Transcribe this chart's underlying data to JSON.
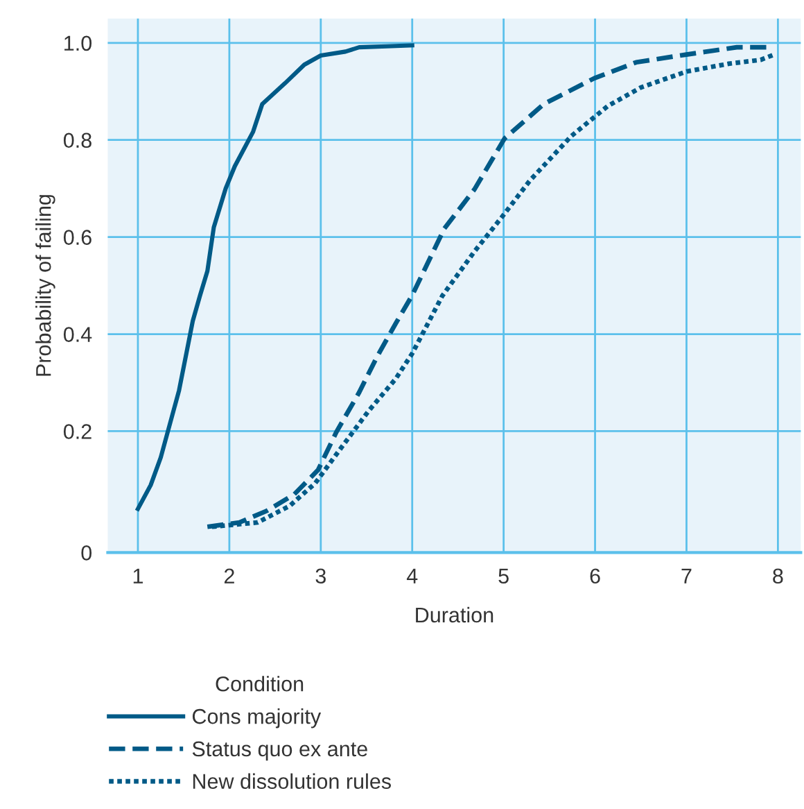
{
  "chart_data": {
    "type": "line",
    "xlabel": "Duration",
    "ylabel": "Probability of failing",
    "legend_title": "Condition",
    "xlim": [
      0.67,
      8.25
    ],
    "ylim": [
      -0.05,
      1.05
    ],
    "xticks": [
      1,
      2,
      3,
      4,
      5,
      6,
      7,
      8
    ],
    "yticks": [
      {
        "value": -0.05,
        "label": "0"
      },
      {
        "value": 0.2,
        "label": "0.2"
      },
      {
        "value": 0.4,
        "label": "0.4"
      },
      {
        "value": 0.6,
        "label": "0.6"
      },
      {
        "value": 0.8,
        "label": "0.8"
      },
      {
        "value": 1,
        "label": "1.0"
      }
    ],
    "grid": true,
    "legend": "bottom",
    "marker": "none",
    "series": [
      {
        "name": "Cons majority",
        "color": "#005a87",
        "line_style": "solid",
        "x": [
          1.0,
          1.14,
          1.25,
          1.45,
          1.6,
          1.68,
          1.76,
          1.83,
          1.96,
          2.06,
          2.26,
          2.36,
          2.61,
          2.82,
          3.0,
          3.27,
          3.42,
          3.72,
          4.0
        ],
        "values": [
          0.04,
          0.089,
          0.146,
          0.284,
          0.427,
          0.48,
          0.53,
          0.62,
          0.7,
          0.746,
          0.817,
          0.874,
          0.917,
          0.955,
          0.974,
          0.982,
          0.991,
          0.993,
          0.995
        ]
      },
      {
        "name": "Status quo ex ante",
        "color": "#005a87",
        "line_style": "dashed",
        "x": [
          1.76,
          2.11,
          2.41,
          2.71,
          2.97,
          3.17,
          3.42,
          3.62,
          3.82,
          4.0,
          4.35,
          4.68,
          5.01,
          5.44,
          5.99,
          6.45,
          7.0,
          7.55,
          7.88
        ],
        "values": [
          0.003,
          0.012,
          0.036,
          0.07,
          0.12,
          0.198,
          0.28,
          0.355,
          0.422,
          0.48,
          0.617,
          0.698,
          0.803,
          0.874,
          0.927,
          0.96,
          0.976,
          0.991,
          0.991
        ]
      },
      {
        "name": "New dissolution rules",
        "color": "#005a87",
        "line_style": "dotted",
        "x": [
          1.81,
          2.31,
          2.66,
          2.94,
          3.22,
          3.52,
          3.82,
          4.0,
          4.33,
          4.68,
          4.98,
          5.29,
          5.74,
          6.14,
          6.5,
          7.0,
          7.46,
          7.81,
          7.96
        ],
        "values": [
          0.003,
          0.012,
          0.046,
          0.093,
          0.165,
          0.241,
          0.308,
          0.36,
          0.479,
          0.57,
          0.641,
          0.717,
          0.808,
          0.87,
          0.908,
          0.941,
          0.957,
          0.965,
          0.976
        ]
      }
    ]
  }
}
